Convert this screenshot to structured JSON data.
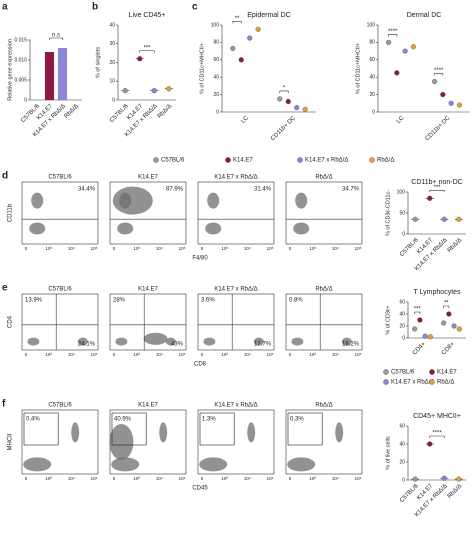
{
  "legend": {
    "series": [
      {
        "name": "C57BL/6",
        "color": "#9a9a9a"
      },
      {
        "name": "K14.E7",
        "color": "#8e1b3f"
      },
      {
        "name": "K14.E7 x RbΔ/Δ",
        "color": "#8c86d8"
      },
      {
        "name": "RbΔ/Δ",
        "color": "#e0a13a"
      }
    ]
  },
  "panels": {
    "a": {
      "label": "a",
      "chart": {
        "type": "bar",
        "ylabel": "Relative gene expression",
        "categories": [
          "C57BL/6",
          "K14.E7",
          "K14.E7 x RbΔ/Δ",
          "RbΔ/Δ"
        ],
        "values": [
          0,
          0.012,
          0.013,
          0
        ],
        "ylim": [
          0,
          0.015
        ],
        "yticks": [
          0,
          0.005,
          {
            "value": 0.01,
            "label": "0.010"
          },
          0.015
        ],
        "annotations": [
          "n.s"
        ]
      }
    },
    "b": {
      "label": "b",
      "chart": {
        "type": "dot",
        "title": "Live CD45+",
        "ylabel": "% of singlets",
        "categories": [
          "C57BL/6",
          "K14.E7",
          "K14.E7 x RbΔ/Δ",
          "RbΔ/Δ"
        ],
        "values": [
          5,
          22,
          5,
          6
        ],
        "ylim": [
          0,
          40
        ],
        "yticks": [
          0,
          10,
          20,
          30,
          40
        ],
        "annotations": [
          "***"
        ]
      }
    },
    "c": {
      "label": "c",
      "charts": [
        {
          "type": "grouped-dot",
          "title": "Epidermal DC",
          "ylabel": "% of CD11c+MHCII+",
          "groups": [
            "LC",
            "CD11b+ DC"
          ],
          "values": [
            [
              73,
              60,
              85,
              95
            ],
            [
              15,
              12,
              5,
              3
            ]
          ],
          "ylim": [
            0,
            100
          ],
          "yticks": [
            0,
            20,
            40,
            60,
            80,
            100
          ],
          "annotations": [
            "**",
            "*"
          ]
        },
        {
          "type": "grouped-dot",
          "title": "Dermal DC",
          "ylabel": "% of CD11c+MHCII+",
          "groups": [
            "LC",
            "CD11b+ DC"
          ],
          "values": [
            [
              80,
              45,
              70,
              75
            ],
            [
              35,
              20,
              10,
              8
            ]
          ],
          "ylim": [
            0,
            100
          ],
          "yticks": [
            0,
            20,
            40,
            60,
            80,
            100
          ],
          "annotations": [
            "****",
            "****"
          ]
        }
      ]
    },
    "d": {
      "label": "d",
      "flow": {
        "x_label": "F4/80",
        "y_label": "CD11b",
        "axis_ticks": [
          "0",
          "10³",
          "10⁴",
          "10⁵"
        ],
        "plots": [
          {
            "title": "C57BL/6",
            "gates": [
              "34.4%"
            ]
          },
          {
            "title": "K14.E7",
            "gates": [
              "87.9%"
            ]
          },
          {
            "title": "K14.E7 x RbΔ/Δ",
            "gates": [
              "31.4%"
            ]
          },
          {
            "title": "RbΔ/Δ",
            "gates": [
              "34.7%"
            ]
          }
        ]
      },
      "chart": {
        "type": "dot",
        "title": "CD11b+ non-DC",
        "ylabel": "% of CD3ε-CD11c-",
        "categories": [
          "C57BL/6",
          "K14.E7",
          "K14.E7 x RbΔ/Δ",
          "RbΔ/Δ"
        ],
        "values": [
          35,
          85,
          35,
          35
        ],
        "ylim": [
          0,
          100
        ],
        "yticks": [
          0,
          50,
          100
        ],
        "annotations": [
          "***"
        ]
      }
    },
    "e": {
      "label": "e",
      "flow": {
        "x_label": "CD8",
        "y_label": "CD4",
        "axis_ticks": [
          "0",
          "10³",
          "10⁴",
          "10⁵"
        ],
        "plots": [
          {
            "title": "C57BL/6",
            "gates": [
              "13.9%",
              "24.1%"
            ]
          },
          {
            "title": "K14.E7",
            "gates": [
              "28%",
              "43%"
            ]
          },
          {
            "title": "K14.E7 x RbΔ/Δ",
            "gates": [
              "3.6%",
              "17.7%"
            ]
          },
          {
            "title": "RbΔ/Δ",
            "gates": [
              "0.8%",
              "16.2%"
            ]
          }
        ]
      },
      "chart": {
        "type": "grouped-dot",
        "title": "T Lymphocytes",
        "ylabel": "% of CD3ε+",
        "groups": [
          "CD4+",
          "CD8+"
        ],
        "values": [
          [
            15,
            30,
            3,
            2
          ],
          [
            25,
            40,
            20,
            15
          ]
        ],
        "ylim": [
          0,
          60
        ],
        "yticks": [
          0,
          20,
          40,
          60
        ],
        "annotations": [
          "***",
          "**"
        ]
      }
    },
    "f": {
      "label": "f",
      "flow": {
        "x_label": "CD45",
        "y_label": "MHCII",
        "axis_ticks": [
          "0",
          "10³",
          "10⁴",
          "10⁵"
        ],
        "plots": [
          {
            "title": "C57BL/6",
            "gates": [
              "0.4%"
            ]
          },
          {
            "title": "K14.E7",
            "gates": [
              "40.9%"
            ]
          },
          {
            "title": "K14.E7 x RbΔ/Δ",
            "gates": [
              "1.3%"
            ]
          },
          {
            "title": "RbΔ/Δ",
            "gates": [
              "0.3%"
            ]
          }
        ]
      },
      "chart": {
        "type": "dot",
        "title": "CD45+ MHCII+",
        "ylabel": "% of live cells",
        "categories": [
          "C57BL/6",
          "K14.E7",
          "K14.E7 x RbΔ/Δ",
          "RbΔ/Δ"
        ],
        "values": [
          1,
          40,
          2,
          1
        ],
        "ylim": [
          0,
          60
        ],
        "yticks": [
          0,
          20,
          40,
          60
        ],
        "annotations": [
          "****"
        ]
      }
    }
  }
}
